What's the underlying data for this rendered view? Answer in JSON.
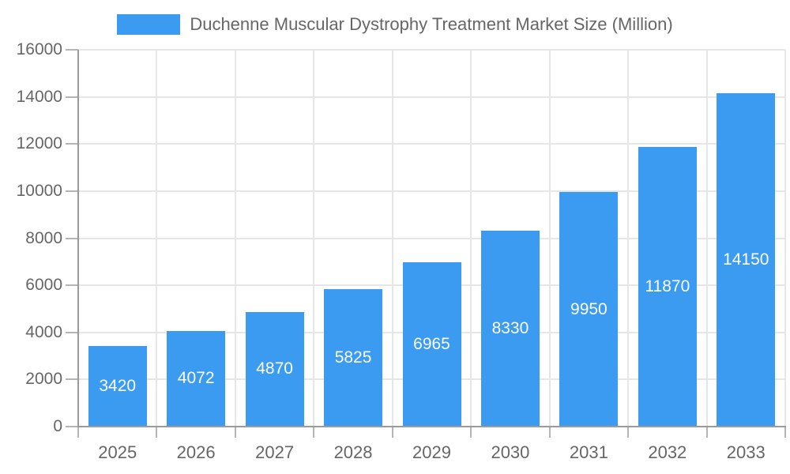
{
  "legend": {
    "label": "Duchenne Muscular Dystrophy Treatment Market Size (Million)"
  },
  "chart_data": {
    "type": "bar",
    "title": "Duchenne Muscular Dystrophy Treatment Market Size (Million)",
    "categories": [
      "2025",
      "2026",
      "2027",
      "2028",
      "2029",
      "2030",
      "2031",
      "2032",
      "2033"
    ],
    "values": [
      3420,
      4072,
      4870,
      5825,
      6965,
      8330,
      9950,
      11870,
      14150
    ],
    "xlabel": "",
    "ylabel": "",
    "ylim": [
      0,
      16000
    ],
    "ytick_step": 2000,
    "yticks": [
      0,
      2000,
      4000,
      6000,
      8000,
      10000,
      12000,
      14000,
      16000
    ],
    "bar_labels_visible": true,
    "legend_position": "top-center",
    "grid": true,
    "colors": {
      "bar": "#3B9BF0",
      "grid": "#E6E6E6",
      "axis": "#9B9B9B",
      "tick": "#B5B5B5",
      "text": "#666666",
      "bar_label": "#FFFFFF",
      "background": "#FFFFFF"
    }
  }
}
